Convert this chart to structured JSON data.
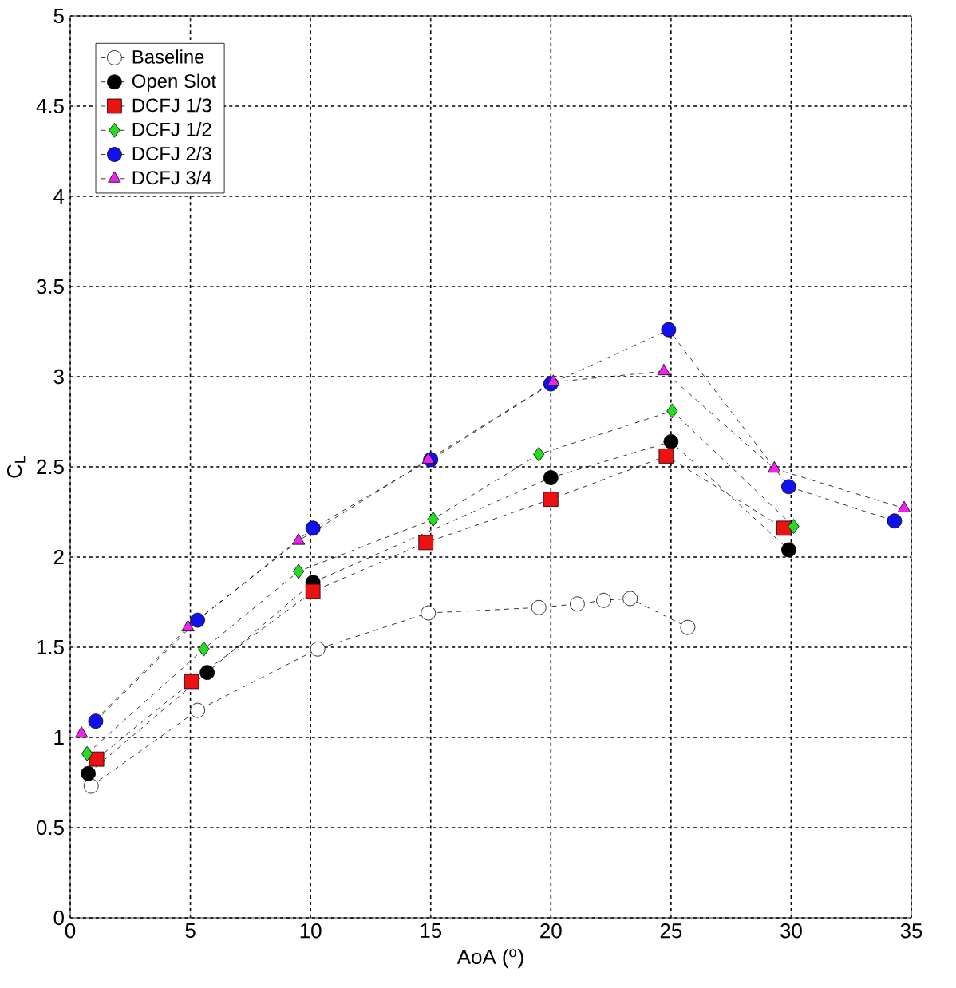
{
  "chart_data": {
    "type": "line",
    "xlabel": "AoA ($^{o}$)",
    "ylabel": "C$_{L}$",
    "xlim": [
      0,
      35
    ],
    "xticks": [
      0,
      5,
      10,
      15,
      20,
      25,
      30,
      35
    ],
    "ylim": [
      0,
      5
    ],
    "yticks": [
      0,
      0.5,
      1,
      1.5,
      2,
      2.5,
      3,
      3.5,
      4,
      4.5,
      5
    ],
    "grid": true,
    "legend": "top left",
    "line_style": "dashed",
    "series": [
      {
        "name": "Baseline",
        "color": "#ffffff",
        "marker": "circle",
        "x": [
          0.87,
          5.3,
          10.3,
          14.9,
          19.5,
          21.1,
          22.2,
          23.3,
          25.7
        ],
        "values": [
          0.73,
          1.15,
          1.49,
          1.69,
          1.72,
          1.74,
          1.76,
          1.77,
          1.61
        ]
      },
      {
        "name": "Open Slot",
        "color": "#000000",
        "marker": "circle",
        "x": [
          0.75,
          5.7,
          10.1,
          15,
          20,
          25,
          29.9
        ],
        "values": [
          0.8,
          1.36,
          1.86,
          null,
          2.44,
          2.64,
          2.04
        ]
      },
      {
        "name": "DCFJ 1/3",
        "color": "#ee1111",
        "marker": "square",
        "x": [
          1.1,
          5.05,
          10.1,
          14.8,
          20,
          24.8,
          29.7
        ],
        "values": [
          0.88,
          1.31,
          1.81,
          2.08,
          2.32,
          2.56,
          2.16
        ]
      },
      {
        "name": "DCFJ 1/2",
        "color": "#22dd22",
        "marker": "diamond",
        "x": [
          0.7,
          5.56,
          9.5,
          15.1,
          19.5,
          25.05,
          30.1
        ],
        "values": [
          0.91,
          1.49,
          1.92,
          2.21,
          2.57,
          2.81,
          2.17
        ]
      },
      {
        "name": "DCFJ 2/3",
        "color": "#1111ee",
        "marker": "circle",
        "x": [
          1.06,
          5.3,
          10.1,
          15,
          20,
          24.9,
          29.9,
          34.3
        ],
        "values": [
          1.09,
          1.65,
          2.16,
          2.54,
          2.96,
          3.26,
          2.39,
          2.2
        ]
      },
      {
        "name": "DCFJ 3/4",
        "color": "#ee22ee",
        "marker": "triangle",
        "x": [
          0.47,
          4.9,
          9.5,
          14.9,
          20.1,
          24.7,
          29.3,
          34.7
        ],
        "values": [
          1.02,
          1.61,
          2.09,
          2.54,
          2.97,
          3.03,
          2.49,
          2.27
        ]
      }
    ]
  }
}
